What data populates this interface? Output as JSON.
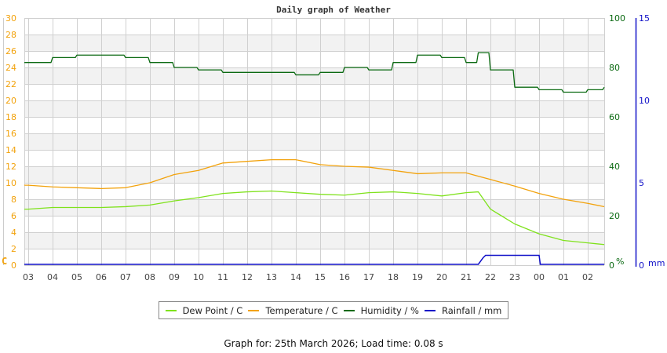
{
  "title": "Daily graph of Weather",
  "footer": "Graph for: 25th March 2026; Load time: 0.08 s",
  "colors": {
    "dew_point": "#7fe21c",
    "temperature": "#f2a20c",
    "humidity": "#0b6a12",
    "rainfall": "#1010c8",
    "left_axis": "#f2a20c",
    "humidity_axis": "#0b6a12",
    "rain_axis": "#1010c8",
    "grid": "#d0d0d0",
    "band": "#f2f2f2"
  },
  "legend": [
    {
      "label": "Dew Point / C",
      "color": "#7fe21c"
    },
    {
      "label": "Temperature / C",
      "color": "#f2a20c"
    },
    {
      "label": "Humidity / %",
      "color": "#0b6a12"
    },
    {
      "label": "Rainfall / mm",
      "color": "#1010c8"
    }
  ],
  "axes": {
    "left_unit": "C",
    "humidity_unit": "%",
    "rain_unit": "mm"
  },
  "chart_data": {
    "type": "line",
    "title": "Daily graph of Weather",
    "xlabel": "",
    "x_ticks": [
      "03",
      "04",
      "05",
      "06",
      "07",
      "08",
      "09",
      "10",
      "11",
      "12",
      "13",
      "14",
      "15",
      "16",
      "17",
      "18",
      "19",
      "20",
      "21",
      "22",
      "23",
      "00",
      "01",
      "02"
    ],
    "y_left": {
      "label": "C",
      "ticks": [
        0,
        2,
        4,
        6,
        8,
        10,
        12,
        14,
        16,
        18,
        20,
        22,
        24,
        26,
        28,
        30
      ],
      "range": [
        0,
        30
      ]
    },
    "y_right_humidity": {
      "label": "%",
      "ticks": [
        0,
        20,
        40,
        60,
        80,
        100
      ],
      "range": [
        0,
        100
      ]
    },
    "y_right_rain": {
      "label": "mm",
      "ticks": [
        0,
        5,
        10,
        15
      ],
      "range": [
        0,
        15
      ]
    },
    "grid": true,
    "legend_position": "bottom",
    "x": [
      "03",
      "04",
      "05",
      "06",
      "07",
      "08",
      "09",
      "10",
      "11",
      "12",
      "13",
      "14",
      "15",
      "16",
      "17",
      "18",
      "19",
      "20",
      "21",
      "21.5",
      "22",
      "23",
      "00",
      "01",
      "02",
      "02.8"
    ],
    "series": [
      {
        "name": "Dew Point / C",
        "axis": "left",
        "values": [
          6.8,
          7.0,
          7.0,
          7.0,
          7.1,
          7.3,
          7.8,
          8.2,
          8.7,
          8.9,
          9.0,
          8.8,
          8.6,
          8.5,
          8.8,
          8.9,
          8.7,
          8.4,
          8.8,
          8.9,
          6.8,
          5.0,
          3.8,
          3.0,
          2.7,
          2.5
        ]
      },
      {
        "name": "Temperature / C",
        "axis": "left",
        "values": [
          9.7,
          9.5,
          9.4,
          9.3,
          9.4,
          10.0,
          11.0,
          11.5,
          12.4,
          12.6,
          12.8,
          12.8,
          12.2,
          12.0,
          11.9,
          11.5,
          11.1,
          11.2,
          11.2,
          10.8,
          10.4,
          9.6,
          8.7,
          8.0,
          7.5,
          7.1
        ]
      },
      {
        "name": "Humidity / %",
        "axis": "humidity",
        "values": [
          82,
          84,
          85,
          85,
          84,
          82,
          80,
          79,
          78,
          78,
          78,
          77,
          78,
          80,
          79,
          82,
          85,
          84,
          82,
          86,
          79,
          72,
          71,
          70,
          71,
          72
        ]
      },
      {
        "name": "Rainfall / mm",
        "axis": "rain",
        "values": [
          0,
          0,
          0,
          0,
          0,
          0,
          0,
          0,
          0,
          0,
          0,
          0,
          0,
          0,
          0,
          0,
          0,
          0,
          0,
          0.5,
          0.5,
          0.5,
          0,
          0,
          0,
          0
        ]
      }
    ]
  }
}
